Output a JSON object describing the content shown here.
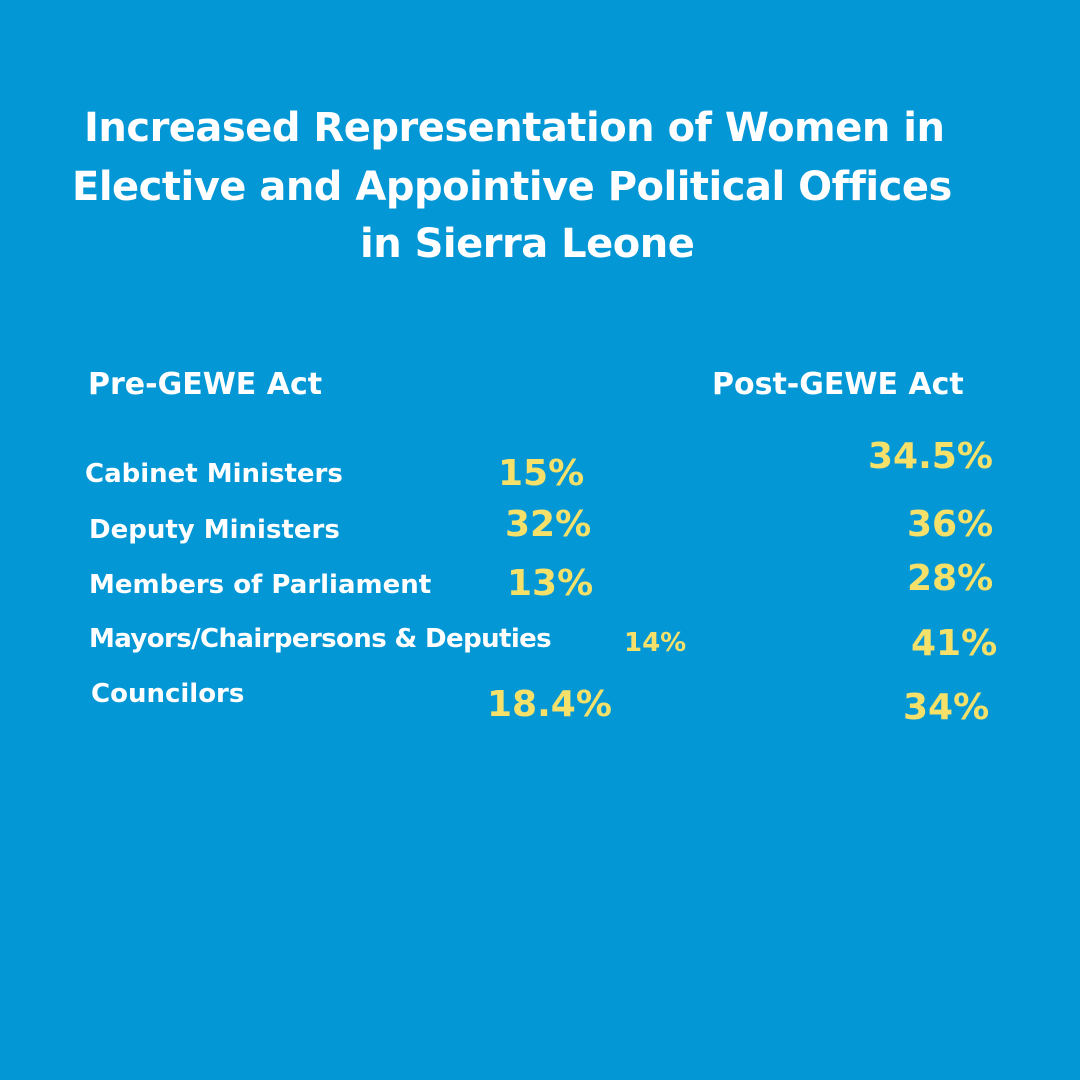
{
  "title": {
    "lines": [
      "Increased Representation of Women in",
      "Elective and Appointive Political Offices",
      "in Sierra Leone"
    ]
  },
  "headers": {
    "pre": "Pre-GEWE Act",
    "post": "Post-GEWE Act"
  },
  "rows": [
    {
      "label": "Cabinet Ministers",
      "pre": "15%",
      "post": "34.5%"
    },
    {
      "label": "Deputy Ministers",
      "pre": "32%",
      "post": "36%"
    },
    {
      "label": "Members of Parliament",
      "pre": "13%",
      "post": "28%"
    },
    {
      "label": "Mayors/Chairpersons & Deputies",
      "pre": "14%",
      "post": "41%"
    },
    {
      "label": "Councilors",
      "pre": "18.4%",
      "post": "34%"
    }
  ],
  "colors": {
    "background": "#0497d6",
    "text": "#ffffff",
    "value": "#f5e16a"
  }
}
